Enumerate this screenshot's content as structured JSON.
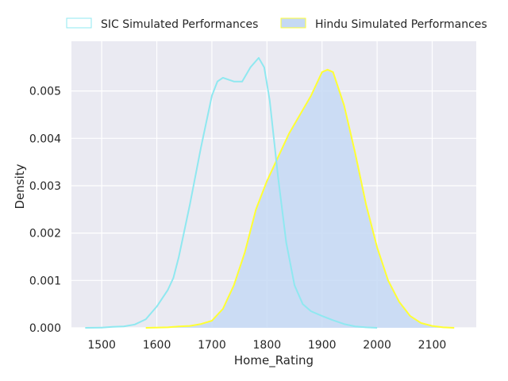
{
  "chart_data": {
    "type": "area",
    "xlabel": "Home_Rating",
    "ylabel": "Density",
    "xlim": [
      1445,
      2180
    ],
    "ylim": [
      0,
      0.00605
    ],
    "x_ticks": [
      1500,
      1600,
      1700,
      1800,
      1900,
      2000,
      2100
    ],
    "y_ticks": [
      0.0,
      0.001,
      0.002,
      0.003,
      0.004,
      0.005
    ],
    "y_tick_labels": [
      "0.000",
      "0.001",
      "0.002",
      "0.003",
      "0.004",
      "0.005"
    ],
    "grid": true,
    "legend_position": "top",
    "series": [
      {
        "name": "SIC Simulated Performances",
        "line_color": "#8fe8f0",
        "fill_color": "none",
        "points": [
          [
            1470,
            0.0
          ],
          [
            1500,
            5e-06
          ],
          [
            1520,
            2e-05
          ],
          [
            1540,
            3e-05
          ],
          [
            1560,
            7e-05
          ],
          [
            1580,
            0.00018
          ],
          [
            1600,
            0.00045
          ],
          [
            1620,
            0.0008
          ],
          [
            1630,
            0.00105
          ],
          [
            1640,
            0.0015
          ],
          [
            1660,
            0.0026
          ],
          [
            1680,
            0.0038
          ],
          [
            1700,
            0.0049
          ],
          [
            1710,
            0.0052
          ],
          [
            1720,
            0.00528
          ],
          [
            1740,
            0.0052
          ],
          [
            1755,
            0.0052
          ],
          [
            1770,
            0.0055
          ],
          [
            1785,
            0.0057
          ],
          [
            1795,
            0.0055
          ],
          [
            1805,
            0.0048
          ],
          [
            1820,
            0.0032
          ],
          [
            1835,
            0.0018
          ],
          [
            1850,
            0.0009
          ],
          [
            1865,
            0.0005
          ],
          [
            1880,
            0.00035
          ],
          [
            1900,
            0.00025
          ],
          [
            1920,
            0.00016
          ],
          [
            1940,
            8e-05
          ],
          [
            1960,
            3e-05
          ],
          [
            1980,
            1e-05
          ],
          [
            2000,
            0.0
          ]
        ]
      },
      {
        "name": "Hindu Simulated Performances",
        "line_color": "#ffff33",
        "fill_color": "#c5d9f4",
        "points": [
          [
            1580,
            0.0
          ],
          [
            1620,
            1e-05
          ],
          [
            1640,
            3e-05
          ],
          [
            1660,
            4e-05
          ],
          [
            1680,
            8e-05
          ],
          [
            1700,
            0.00015
          ],
          [
            1720,
            0.0004
          ],
          [
            1740,
            0.0009
          ],
          [
            1760,
            0.0016
          ],
          [
            1780,
            0.0025
          ],
          [
            1800,
            0.0031
          ],
          [
            1820,
            0.0036
          ],
          [
            1840,
            0.0041
          ],
          [
            1860,
            0.0045
          ],
          [
            1880,
            0.0049
          ],
          [
            1900,
            0.0054
          ],
          [
            1910,
            0.00545
          ],
          [
            1920,
            0.0054
          ],
          [
            1940,
            0.0047
          ],
          [
            1960,
            0.0037
          ],
          [
            1980,
            0.0026
          ],
          [
            2000,
            0.0017
          ],
          [
            2020,
            0.001
          ],
          [
            2040,
            0.00055
          ],
          [
            2060,
            0.00025
          ],
          [
            2080,
            0.0001
          ],
          [
            2100,
            4e-05
          ],
          [
            2120,
            1e-05
          ],
          [
            2140,
            0.0
          ]
        ]
      }
    ]
  },
  "colors": {
    "plot_background": "#eaeaf2",
    "grid": "#ffffff",
    "text": "#262626"
  }
}
